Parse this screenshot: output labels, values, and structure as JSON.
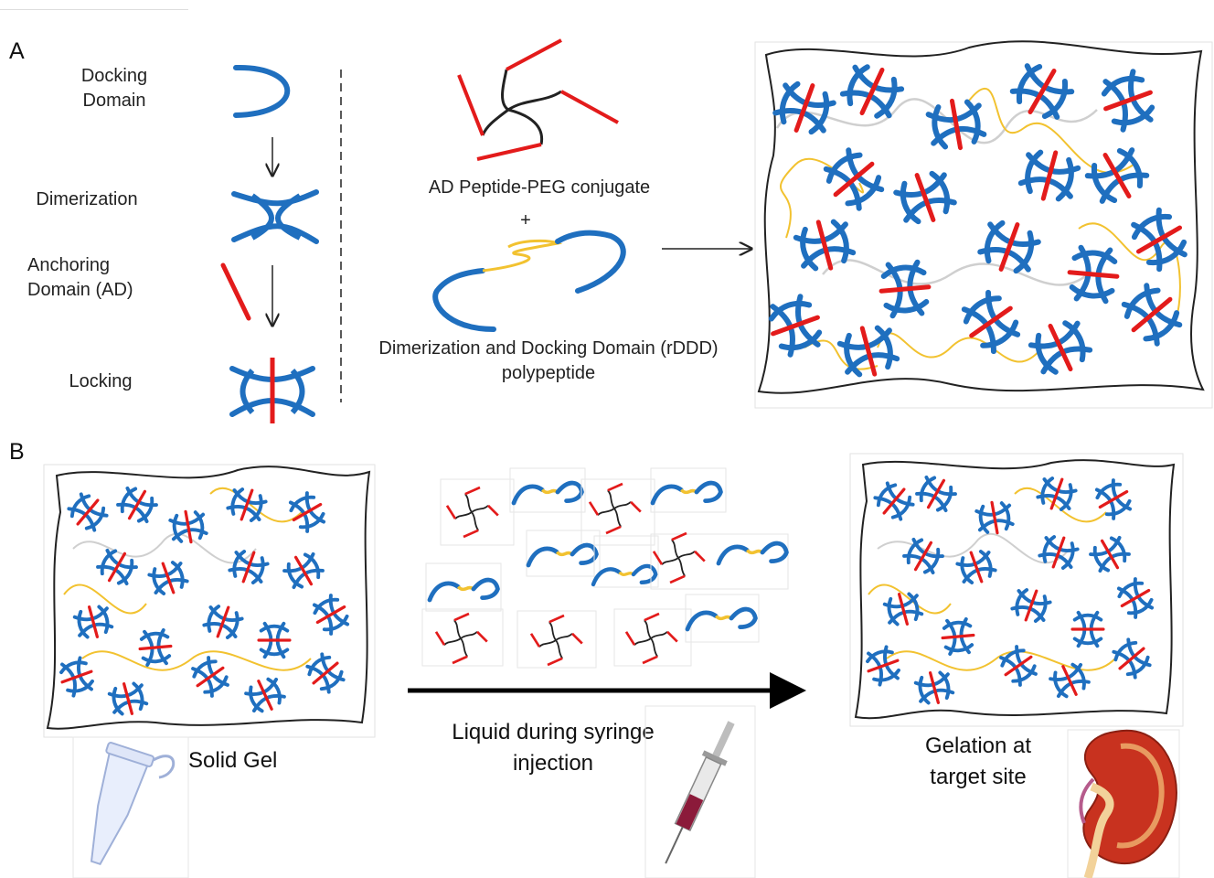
{
  "panelA": {
    "letter": "A",
    "docking_domain": "Docking\nDomain",
    "dimerization": "Dimerization",
    "anchoring_domain": "Anchoring\nDomain (AD)",
    "locking": "Locking",
    "ad_conjugate": "AD Peptide-PEG conjugate",
    "plus": "+",
    "rddd": "Dimerization and Docking Domain (rDDD)\npolypeptide"
  },
  "panelB": {
    "letter": "B",
    "solid_gel": "Solid Gel",
    "liquid": "Liquid during syringe\ninjection",
    "gelation": "Gelation at\ntarget site"
  },
  "colors": {
    "docking_blue": "#1f6fbf",
    "anchor_red": "#e31b1b",
    "peg_yellow": "#f2c230",
    "linker_gray": "#c9c9c9",
    "outline": "#222222"
  },
  "icons": [
    "microcentrifuge-tube-icon",
    "syringe-icon",
    "kidney-icon"
  ]
}
